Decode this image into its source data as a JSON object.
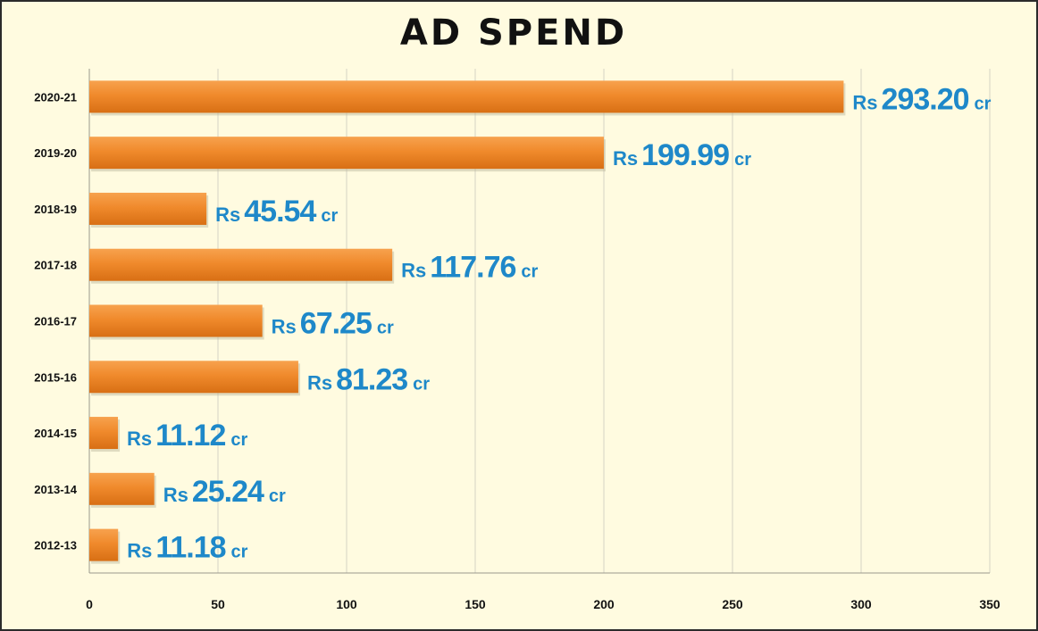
{
  "chart_data": {
    "type": "bar",
    "orientation": "horizontal",
    "title": "AD SPEND",
    "categories": [
      "2020-21",
      "2019-20",
      "2018-19",
      "2017-18",
      "2016-17",
      "2015-16",
      "2014-15",
      "2013-14",
      "2012-13"
    ],
    "values": [
      293.2,
      199.99,
      45.54,
      117.76,
      67.25,
      81.23,
      11.12,
      25.24,
      11.18
    ],
    "data_labels": [
      "293.20",
      "199.99",
      "45.54",
      "117.76",
      "67.25",
      "81.23",
      "11.12",
      "25.24",
      "11.18"
    ],
    "label_prefix": "Rs",
    "label_suffix": "cr",
    "xlim": [
      0,
      350
    ],
    "x_ticks": [
      "0",
      "50",
      "100",
      "150",
      "200",
      "250",
      "300",
      "350"
    ],
    "grid": true,
    "bar_color": "#f08a2c",
    "label_color": "#1e88c9",
    "background_color": "#fffbe0"
  }
}
